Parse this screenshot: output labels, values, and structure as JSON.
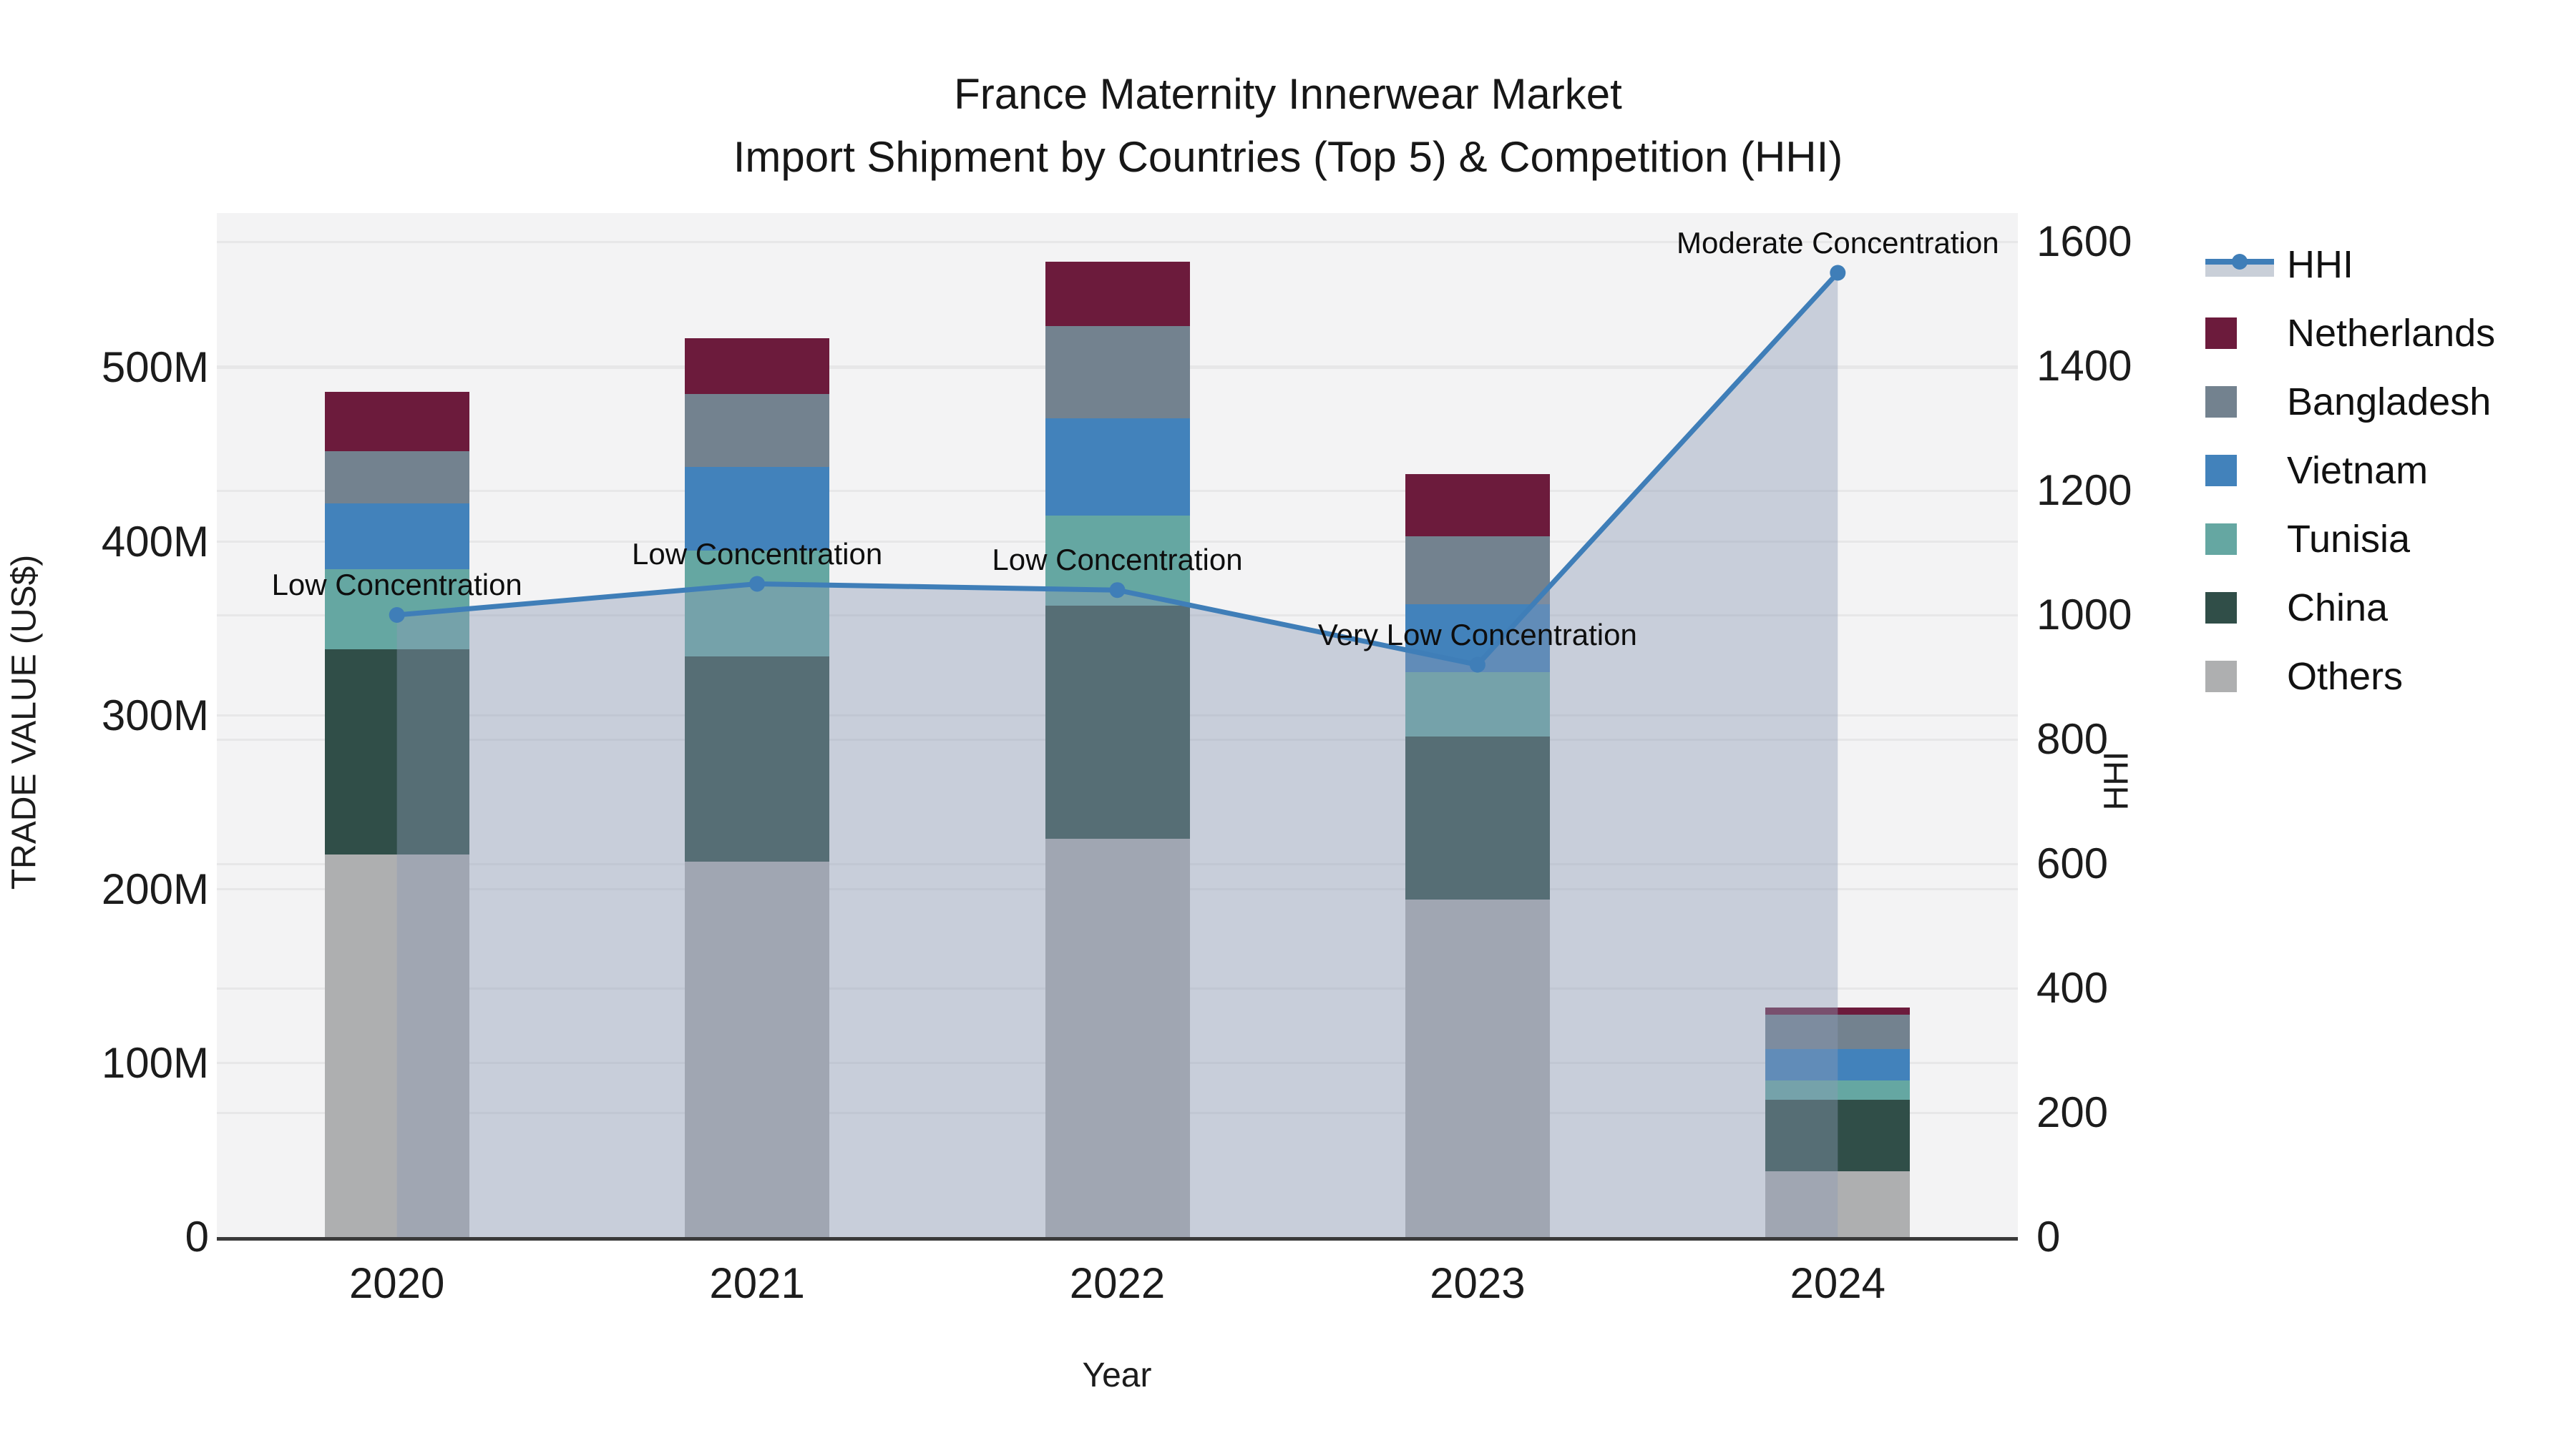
{
  "title": {
    "line1": "France Maternity Innerwear Market",
    "line2": "Import Shipment by Countries (Top 5) & Competition (HHI)"
  },
  "axes": {
    "x_label": "Year",
    "y_left_label": "TRADE VALUE (US$)",
    "y_right_label": "HHI"
  },
  "colors": {
    "plot_background": "#f3f3f4",
    "gridline": "#e7e7e8",
    "axis_spine": "#3a3a3a",
    "hhi_line": "#3f7eb8",
    "hhi_fill": "#8c9bb4",
    "netherlands": "#6c1b3c",
    "bangladesh": "#73828f",
    "vietnam": "#4282bb",
    "tunisia": "#65a7a2",
    "china": "#304e48",
    "others": "#aeafb0"
  },
  "legend_items": [
    {
      "label": "HHI",
      "type": "line",
      "color": "#3f7eb8",
      "band": "#c9cfd8"
    },
    {
      "label": "Netherlands",
      "type": "swatch",
      "color": "#6c1b3c"
    },
    {
      "label": "Bangladesh",
      "type": "swatch",
      "color": "#73828f"
    },
    {
      "label": "Vietnam",
      "type": "swatch",
      "color": "#4282bb"
    },
    {
      "label": "Tunisia",
      "type": "swatch",
      "color": "#65a7a2"
    },
    {
      "label": "China",
      "type": "swatch",
      "color": "#304e48"
    },
    {
      "label": "Others",
      "type": "swatch",
      "color": "#aeafb0"
    }
  ],
  "chart_data": {
    "type": "combo: stacked-bar + line(area)",
    "title": "France Maternity Innerwear Market — Import Shipment by Countries (Top 5) & Competition (HHI)",
    "categories": [
      "2020",
      "2021",
      "2022",
      "2023",
      "2024"
    ],
    "bar_unit": "Million US$",
    "series": [
      {
        "name": "Others",
        "color": "#aeafb0",
        "values": [
          220,
          216,
          229,
          194,
          38
        ]
      },
      {
        "name": "China",
        "color": "#304e48",
        "values": [
          118,
          118,
          134,
          94,
          41
        ]
      },
      {
        "name": "Tunisia",
        "color": "#65a7a2",
        "values": [
          46,
          61,
          52,
          37,
          11
        ]
      },
      {
        "name": "Vietnam",
        "color": "#4282bb",
        "values": [
          38,
          48,
          56,
          39,
          18
        ]
      },
      {
        "name": "Bangladesh",
        "color": "#73828f",
        "values": [
          30,
          42,
          53,
          39,
          20
        ]
      },
      {
        "name": "Netherlands",
        "color": "#6c1b3c",
        "values": [
          34,
          32,
          37,
          36,
          4
        ]
      }
    ],
    "bar_totals": [
      486,
      517,
      561,
      439,
      132
    ],
    "line": {
      "name": "HHI",
      "color": "#3f7eb8",
      "fill_color": "#8c9bb4",
      "fill_opacity": 0.42,
      "values": [
        1000,
        1050,
        1040,
        920,
        1550
      ]
    },
    "annotations": [
      {
        "category": "2020",
        "text": "Low Concentration"
      },
      {
        "category": "2021",
        "text": "Low Concentration"
      },
      {
        "category": "2022",
        "text": "Low Concentration"
      },
      {
        "category": "2023",
        "text": "Very Low Concentration"
      },
      {
        "category": "2024",
        "text": "Moderate Concentration"
      }
    ],
    "y_left": {
      "tick_labels": [
        "0",
        "100M",
        "200M",
        "300M",
        "400M",
        "500M"
      ],
      "tick_values": [
        0,
        100,
        200,
        300,
        400,
        500
      ],
      "max": 589
    },
    "y_right": {
      "tick_labels": [
        "0",
        "200",
        "400",
        "600",
        "800",
        "1000",
        "1200",
        "1400",
        "1600"
      ],
      "tick_values": [
        0,
        200,
        400,
        600,
        800,
        1000,
        1200,
        1400,
        1600
      ],
      "max": 1646
    },
    "legend_position": "right",
    "grid": "horizontal lines at both axes' ticks"
  }
}
